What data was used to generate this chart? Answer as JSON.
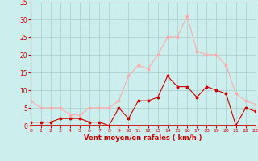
{
  "xlabel": "Vent moyen/en rafales ( km/h )",
  "x_labels": [
    "0",
    "1",
    "2",
    "3",
    "4",
    "5",
    "6",
    "7",
    "8",
    "9",
    "10",
    "11",
    "12",
    "13",
    "14",
    "15",
    "16",
    "17",
    "18",
    "19",
    "20",
    "21",
    "22",
    "23"
  ],
  "hours": [
    0,
    1,
    2,
    3,
    4,
    5,
    6,
    7,
    8,
    9,
    10,
    11,
    12,
    13,
    14,
    15,
    16,
    17,
    18,
    19,
    20,
    21,
    22,
    23
  ],
  "vent_moyen": [
    1,
    1,
    1,
    2,
    2,
    2,
    1,
    1,
    0,
    5,
    2,
    7,
    7,
    8,
    14,
    11,
    11,
    8,
    11,
    10,
    9,
    0,
    5,
    4
  ],
  "en_rafales": [
    7,
    5,
    5,
    5,
    3,
    3,
    5,
    5,
    5,
    7,
    14,
    17,
    16,
    20,
    25,
    25,
    31,
    21,
    20,
    20,
    17,
    9,
    7,
    6
  ],
  "color_moyen": "#cc0000",
  "color_rafales": "#ffaaaa",
  "bg_color": "#cceeed",
  "grid_color": "#aacccc",
  "ylim": [
    0,
    35
  ],
  "yticks": [
    0,
    5,
    10,
    15,
    20,
    25,
    30,
    35
  ],
  "tick_color": "#cc0000",
  "label_color": "#cc0000",
  "spine_color": "#888888"
}
